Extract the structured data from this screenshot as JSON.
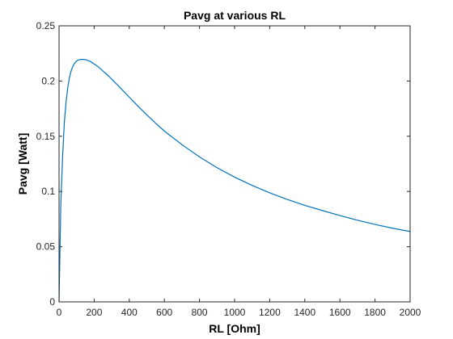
{
  "chart_data": {
    "type": "line",
    "title": "Pavg at various RL",
    "xlabel": "RL [Ohm]",
    "ylabel": "Pavg [Watt]",
    "xlim": [
      0,
      2000
    ],
    "ylim": [
      0,
      0.25
    ],
    "x_ticks": [
      0,
      200,
      400,
      600,
      800,
      1000,
      1200,
      1400,
      1600,
      1800,
      2000
    ],
    "y_ticks": [
      0,
      0.05,
      0.1,
      0.15,
      0.2,
      0.25
    ],
    "x_tick_labels": [
      "0",
      "200",
      "400",
      "600",
      "800",
      "1000",
      "1200",
      "1400",
      "1600",
      "1800",
      "2000"
    ],
    "y_tick_labels": [
      "0",
      "0.05",
      "0.1",
      "0.15",
      "0.2",
      "0.25"
    ],
    "grid": false,
    "box": true,
    "series": [
      {
        "color": "#0072BD",
        "x": [
          0,
          10,
          20,
          30,
          40,
          50,
          60,
          70,
          80,
          90,
          100,
          110,
          120,
          130,
          140,
          150,
          160,
          170,
          180,
          200,
          225,
          250,
          275,
          300,
          350,
          400,
          450,
          500,
          550,
          600,
          700,
          800,
          900,
          1000,
          1100,
          1200,
          1300,
          1400,
          1500,
          1600,
          1700,
          1800,
          1900,
          2000
        ],
        "y": [
          0,
          0.0887,
          0.1307,
          0.1623,
          0.1811,
          0.1945,
          0.2037,
          0.2098,
          0.2138,
          0.2163,
          0.2181,
          0.219,
          0.2195,
          0.2196,
          0.2196,
          0.2194,
          0.2189,
          0.2183,
          0.2176,
          0.2155,
          0.2127,
          0.209,
          0.2056,
          0.2017,
          0.1937,
          0.1854,
          0.1772,
          0.1694,
          0.1619,
          0.1547,
          0.1424,
          0.1313,
          0.1215,
          0.113,
          0.1055,
          0.0987,
          0.0928,
          0.0874,
          0.0827,
          0.0782,
          0.074,
          0.0701,
          0.0667,
          0.0637
        ]
      }
    ]
  }
}
